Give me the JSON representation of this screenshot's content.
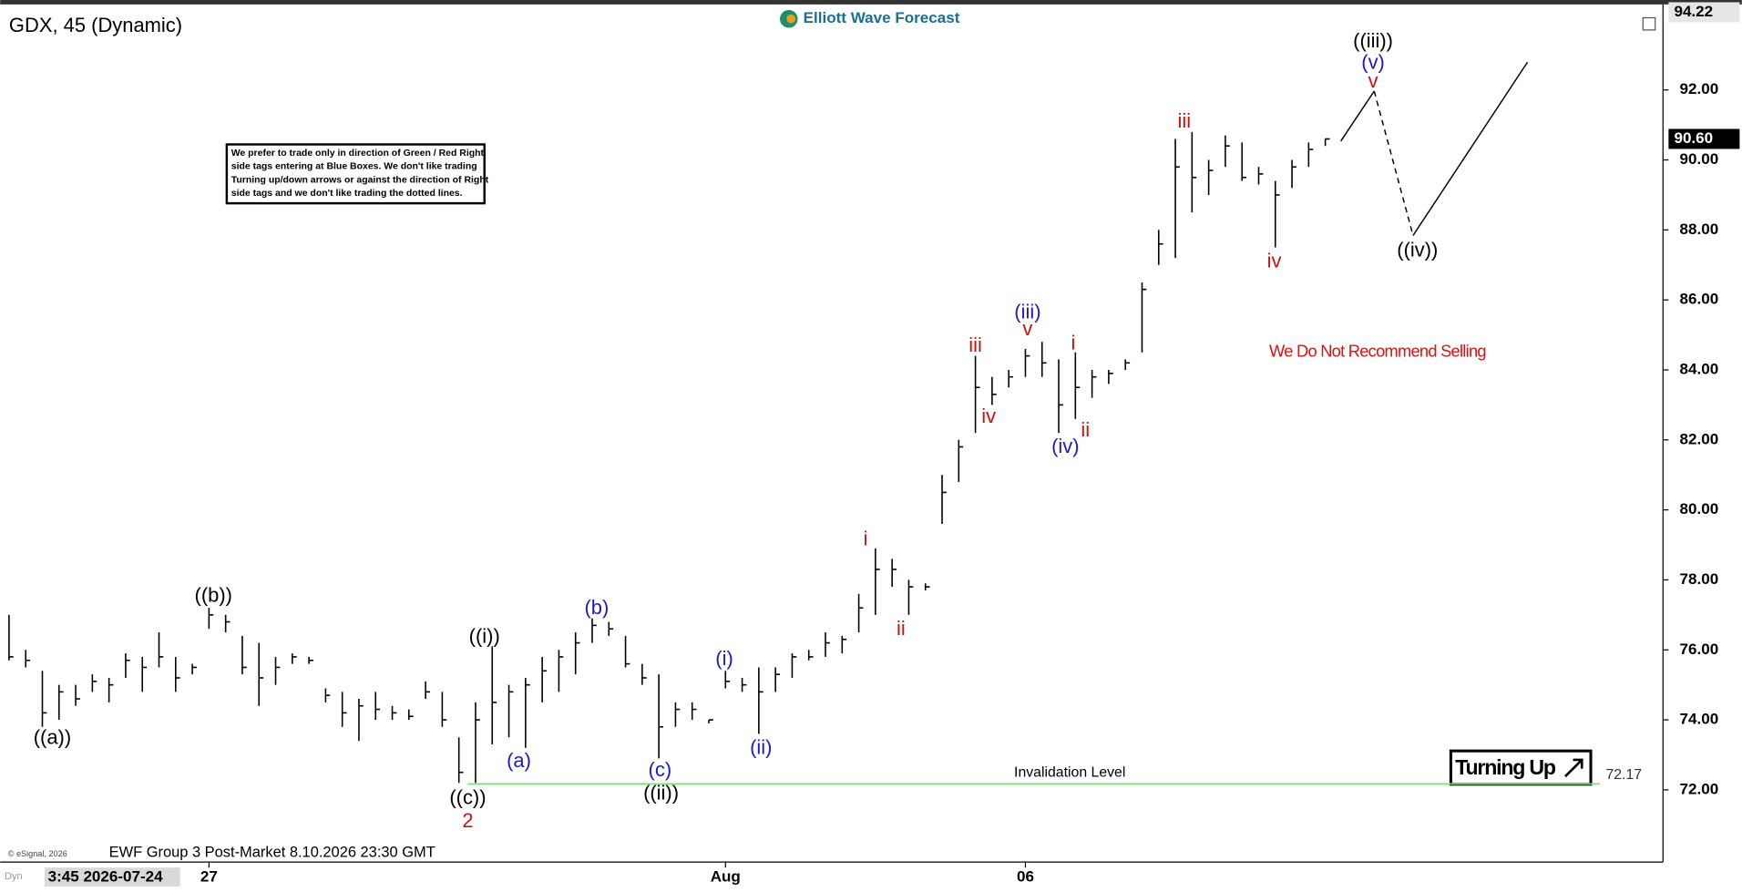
{
  "chart_data": {
    "type": "ohlc",
    "title": "GDX, 45 (Dynamic)",
    "logo": "Elliott Wave Forecast",
    "note": [
      "We prefer to trade only in direction of Green / Red Right",
      "side tags entering at Blue Boxes. We don't like trading",
      "Turning up/down arrows or against the direction of Right",
      "side tags and we don't like trading the dotted lines."
    ],
    "recommendation": "We Do Not Recommend Selling",
    "signal": "Turning Up",
    "footer": "EWF Group 3 Post-Market 8.10.2026 23:30 GMT",
    "copyright": "© eSignal, 2026",
    "mode": "Dyn",
    "color": "#000000",
    "categories": [
      "3:45 2026-07-24",
      null,
      null,
      null,
      null,
      null,
      null,
      null,
      null,
      null,
      null,
      null,
      "27",
      null,
      null,
      null,
      null,
      null,
      null,
      null,
      null,
      null,
      null,
      null,
      null,
      null,
      null,
      null,
      null,
      null,
      null,
      null,
      null,
      null,
      null,
      null,
      null,
      null,
      null,
      null,
      null,
      null,
      null,
      "Aug",
      null,
      null,
      null,
      null,
      null,
      null,
      null,
      null,
      null,
      null,
      null,
      null,
      null,
      null,
      null,
      null,
      null,
      "06",
      null,
      null,
      null,
      null,
      null,
      null,
      null,
      null,
      null,
      null,
      null,
      null,
      null,
      null,
      null,
      null,
      null,
      null
    ],
    "high": [
      77.0,
      76.0,
      75.4,
      75.0,
      75.0,
      75.3,
      75.2,
      75.9,
      75.8,
      76.5,
      75.8,
      75.6,
      77.2,
      77.0,
      76.4,
      76.2,
      75.8,
      75.9,
      75.8,
      74.9,
      74.8,
      74.6,
      74.8,
      74.4,
      74.3,
      75.1,
      74.8,
      73.5,
      74.5,
      76.1,
      75.0,
      75.2,
      75.8,
      76.0,
      76.5,
      76.9,
      76.8,
      76.4,
      75.6,
      75.3,
      74.5,
      74.5,
      74.0,
      75.4,
      75.2,
      75.5,
      75.5,
      75.9,
      76.0,
      76.5,
      76.4,
      77.6,
      78.9,
      78.6,
      78.0,
      77.9,
      81.0,
      82.0,
      84.4,
      83.8,
      84.0,
      84.6,
      84.8,
      84.3,
      84.5,
      84.0,
      84.0,
      84.3,
      86.5,
      88.0,
      90.6,
      90.8,
      90.0,
      90.7,
      90.5,
      89.8,
      89.4,
      90.0,
      90.5,
      90.6
    ],
    "low": [
      75.7,
      75.5,
      73.8,
      74.0,
      74.4,
      74.8,
      74.5,
      75.2,
      74.8,
      75.5,
      74.8,
      75.3,
      76.6,
      76.5,
      75.3,
      74.4,
      75.0,
      75.6,
      75.6,
      74.5,
      73.8,
      73.4,
      74.0,
      74.0,
      74.0,
      74.6,
      73.8,
      72.2,
      72.2,
      73.3,
      73.5,
      73.2,
      74.5,
      74.8,
      75.3,
      76.2,
      76.4,
      75.5,
      75.0,
      72.9,
      73.8,
      74.0,
      73.9,
      74.9,
      74.8,
      73.6,
      74.8,
      75.2,
      75.7,
      75.8,
      75.9,
      76.5,
      77.0,
      77.8,
      77.0,
      77.7,
      79.6,
      80.8,
      82.2,
      83.0,
      83.5,
      83.8,
      83.8,
      82.2,
      82.6,
      83.2,
      83.6,
      84.0,
      84.5,
      87.0,
      87.2,
      88.5,
      89.0,
      89.8,
      89.4,
      89.3,
      87.5,
      89.2,
      89.8,
      90.4
    ],
    "close": [
      75.8,
      75.7,
      74.2,
      74.8,
      74.6,
      75.1,
      75.0,
      75.7,
      75.5,
      75.8,
      75.2,
      75.5,
      77.0,
      76.8,
      75.5,
      75.2,
      75.5,
      75.8,
      75.7,
      74.7,
      74.2,
      74.4,
      74.3,
      74.2,
      74.1,
      74.8,
      74.0,
      72.5,
      74.0,
      74.5,
      74.8,
      75.0,
      75.4,
      75.8,
      76.2,
      76.7,
      76.6,
      75.6,
      75.2,
      73.8,
      74.3,
      74.3,
      74.0,
      75.1,
      75.0,
      74.8,
      75.3,
      75.8,
      75.8,
      76.2,
      76.3,
      77.2,
      78.3,
      78.3,
      77.8,
      77.8,
      80.5,
      81.8,
      83.5,
      83.3,
      83.8,
      84.4,
      84.2,
      83.0,
      83.5,
      83.8,
      83.9,
      84.2,
      86.3,
      87.6,
      89.8,
      89.5,
      89.7,
      90.4,
      89.5,
      89.6,
      89.0,
      89.8,
      90.3,
      90.6
    ],
    "ylim": [
      69.97,
      94.57
    ],
    "yticks": [
      {
        "value": 72,
        "label": "72.00"
      },
      {
        "value": 74,
        "label": "74.00"
      },
      {
        "value": 76,
        "label": "76.00"
      },
      {
        "value": 78,
        "label": "78.00"
      },
      {
        "value": 80,
        "label": "80.00"
      },
      {
        "value": 82,
        "label": "82.00"
      },
      {
        "value": 84,
        "label": "84.00"
      },
      {
        "value": 86,
        "label": "86.00"
      },
      {
        "value": 88,
        "label": "88.00"
      },
      {
        "value": 90,
        "label": "90.00"
      },
      {
        "value": 92,
        "label": "92.00"
      }
    ],
    "top_price": {
      "value": 94.22,
      "label": "94.22"
    },
    "last_price": {
      "value": 90.6,
      "label": "90.60"
    },
    "invalidation": {
      "label": "Invalidation Level",
      "value": 72.17,
      "color": "#7fdc7f"
    },
    "wave_labels": [
      {
        "text": "((a))",
        "color": "#000000"
      },
      {
        "text": "((b))",
        "color": "#000000"
      },
      {
        "text": "((c))",
        "color": "#000000"
      },
      {
        "text": "2",
        "color": "#cc1111"
      },
      {
        "text": "((i))",
        "color": "#000000"
      },
      {
        "text": "(a)",
        "color": "#1a1acc"
      },
      {
        "text": "(b)",
        "color": "#1a1acc"
      },
      {
        "text": "(c)",
        "color": "#1a1acc"
      },
      {
        "text": "((ii))",
        "color": "#000000"
      },
      {
        "text": "(i)",
        "color": "#1a1acc"
      },
      {
        "text": "(ii)",
        "color": "#1a1acc"
      },
      {
        "text": "i",
        "color": "#cc1111"
      },
      {
        "text": "ii",
        "color": "#cc1111"
      },
      {
        "text": "iii",
        "color": "#cc1111"
      },
      {
        "text": "iv",
        "color": "#cc1111"
      },
      {
        "text": "(iii)",
        "color": "#1a1acc"
      },
      {
        "text": "v",
        "color": "#cc1111"
      },
      {
        "text": "i",
        "color": "#cc1111"
      },
      {
        "text": "ii",
        "color": "#cc1111"
      },
      {
        "text": "(iv)",
        "color": "#1a1acc"
      },
      {
        "text": "iii",
        "color": "#cc1111"
      },
      {
        "text": "iv",
        "color": "#cc1111"
      },
      {
        "text": "((iii))",
        "color": "#000000"
      },
      {
        "text": "(v)",
        "color": "#1a1acc"
      },
      {
        "text": "v",
        "color": "#cc1111"
      },
      {
        "text": "((iv))",
        "color": "#000000"
      }
    ]
  }
}
